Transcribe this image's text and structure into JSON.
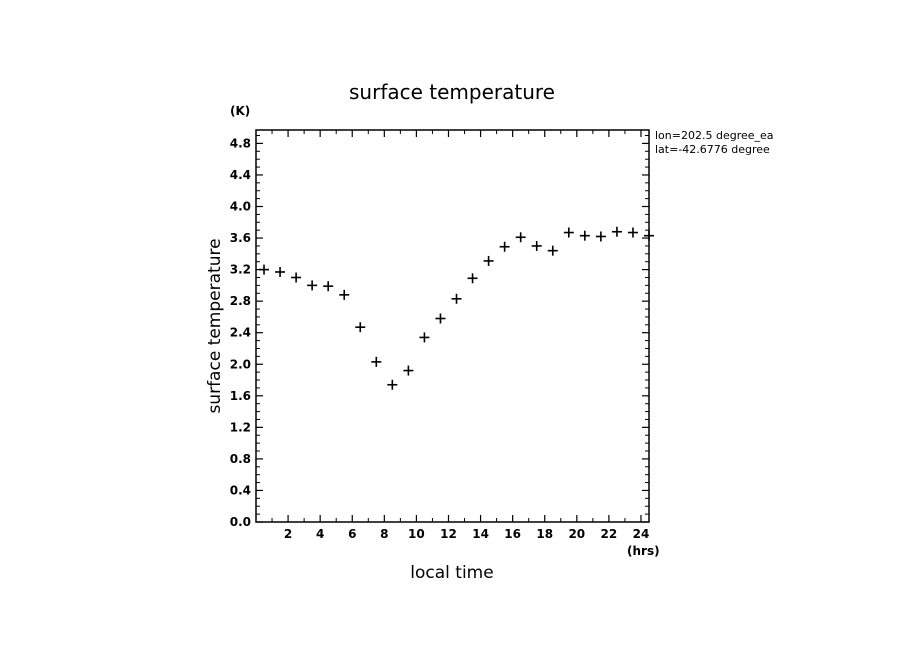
{
  "chart_data": {
    "type": "scatter",
    "title": "surface temperature",
    "xlabel": "local time",
    "ylabel": "surface temperature",
    "xunit": "(hrs)",
    "yunit": "(K)",
    "annotations": [
      "lon=202.5 degree_ea",
      "lat=-42.6776 degree"
    ],
    "xlim": [
      0,
      24.5
    ],
    "ylim": [
      0,
      4.97
    ],
    "x_ticks": [
      2,
      4,
      6,
      8,
      10,
      12,
      14,
      16,
      18,
      20,
      22,
      24
    ],
    "y_ticks": [
      0.0,
      0.4,
      0.8,
      1.2,
      1.6,
      2.0,
      2.4,
      2.8,
      3.2,
      3.6,
      4.0,
      4.4,
      4.8
    ],
    "y_tick_labels": [
      "0.0",
      "0.4",
      "0.8",
      "1.2",
      "1.6",
      "2.0",
      "2.4",
      "2.8",
      "3.2",
      "3.6",
      "4.0",
      "4.4",
      "4.8"
    ],
    "marker": "+",
    "grid": false,
    "x": [
      0.5,
      1.5,
      2.5,
      3.5,
      4.5,
      5.5,
      6.5,
      7.5,
      8.5,
      9.5,
      10.5,
      11.5,
      12.5,
      13.5,
      14.5,
      15.5,
      16.5,
      17.5,
      18.5,
      19.5,
      20.5,
      21.5,
      22.5,
      23.5,
      24.5
    ],
    "y": [
      3.2,
      3.17,
      3.1,
      3.0,
      2.99,
      2.88,
      2.47,
      2.03,
      1.74,
      1.92,
      2.34,
      2.58,
      2.83,
      3.09,
      3.31,
      3.49,
      3.61,
      3.5,
      3.44,
      3.67,
      3.63,
      3.62,
      3.68,
      3.67,
      3.63
    ]
  }
}
